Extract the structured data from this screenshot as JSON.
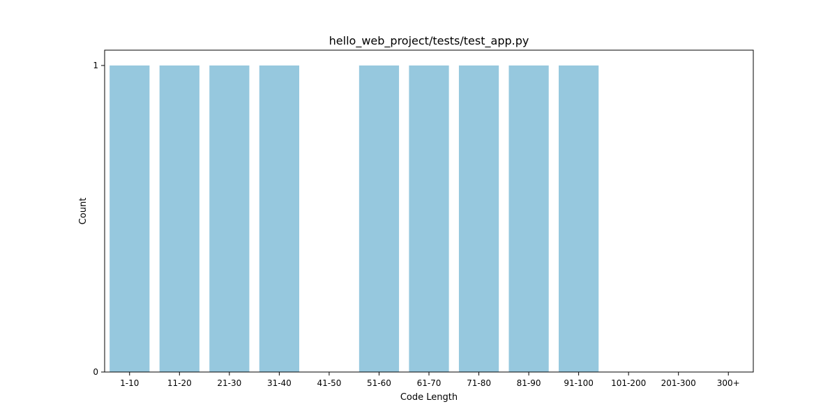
{
  "chart_data": {
    "type": "bar",
    "title": "hello_web_project/tests/test_app.py",
    "xlabel": "Code Length",
    "ylabel": "Count",
    "categories": [
      "1-10",
      "11-20",
      "21-30",
      "31-40",
      "41-50",
      "51-60",
      "61-70",
      "71-80",
      "81-90",
      "91-100",
      "101-200",
      "201-300",
      "300+"
    ],
    "values": [
      1,
      1,
      1,
      1,
      0,
      1,
      1,
      1,
      1,
      1,
      0,
      0,
      0
    ],
    "ylim": [
      0,
      1.05
    ],
    "yticks": [
      0,
      1
    ],
    "bar_color": "#96c8de",
    "grid": false,
    "legend": "none"
  }
}
